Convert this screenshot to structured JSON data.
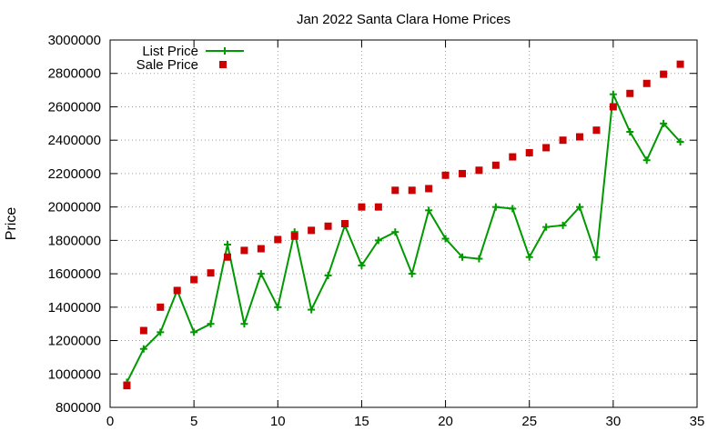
{
  "chart_data": {
    "type": "line",
    "title": "Jan 2022 Santa Clara Home Prices",
    "xlabel": "",
    "ylabel": "Price",
    "xlim": [
      0,
      35
    ],
    "ylim": [
      800000,
      3000000
    ],
    "x_ticks": [
      0,
      5,
      10,
      15,
      20,
      25,
      30,
      35
    ],
    "y_ticks": [
      800000,
      1000000,
      1200000,
      1400000,
      1600000,
      1800000,
      2000000,
      2200000,
      2400000,
      2600000,
      2800000,
      3000000
    ],
    "grid": true,
    "legend_position": "top-left",
    "series": [
      {
        "name": "List Price",
        "style": "line-with-plus-markers",
        "color": "#009900",
        "x": [
          1,
          2,
          3,
          4,
          5,
          6,
          7,
          8,
          9,
          10,
          11,
          12,
          13,
          14,
          15,
          16,
          17,
          18,
          19,
          20,
          21,
          22,
          23,
          24,
          25,
          26,
          27,
          28,
          29,
          30,
          31,
          32,
          33,
          34
        ],
        "y": [
          950000,
          1150000,
          1250000,
          1500000,
          1250000,
          1300000,
          1775000,
          1300000,
          1600000,
          1400000,
          1850000,
          1385000,
          1590000,
          1890000,
          1650000,
          1800000,
          1850000,
          1600000,
          1980000,
          1810000,
          1700000,
          1690000,
          2000000,
          1990000,
          1700000,
          1880000,
          1890000,
          2000000,
          1700000,
          2675000,
          2450000,
          2280000,
          2500000,
          2390000
        ]
      },
      {
        "name": "Sale Price",
        "style": "square-markers",
        "color": "#cc0000",
        "x": [
          1,
          2,
          3,
          4,
          5,
          6,
          7,
          8,
          9,
          10,
          11,
          12,
          13,
          14,
          15,
          16,
          17,
          18,
          19,
          20,
          21,
          22,
          23,
          24,
          25,
          26,
          27,
          28,
          29,
          30,
          31,
          32,
          33,
          34
        ],
        "y": [
          930000,
          1260000,
          1400000,
          1500000,
          1565000,
          1605000,
          1700000,
          1740000,
          1750000,
          1805000,
          1825000,
          1860000,
          1885000,
          1900000,
          2000000,
          2000000,
          2100000,
          2100000,
          2110000,
          2190000,
          2200000,
          2220000,
          2250000,
          2300000,
          2325000,
          2355000,
          2400000,
          2420000,
          2460000,
          2600000,
          2680000,
          2740000,
          2795000,
          2855000
        ]
      }
    ]
  }
}
